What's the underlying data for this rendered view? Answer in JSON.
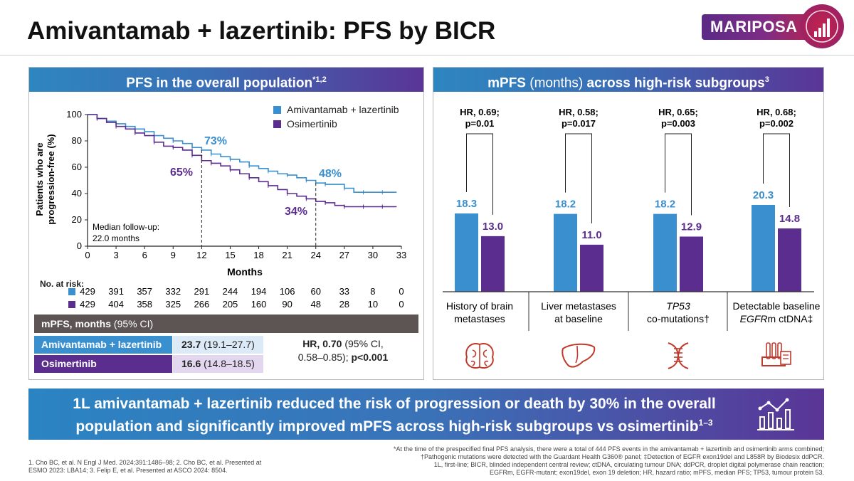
{
  "header": {
    "title": "Amivantamab + lazertinib: PFS by BICR",
    "logo_text": "MARIPOSA"
  },
  "left_panel": {
    "title": "PFS in the overall population",
    "title_sup": "*1,2",
    "ylabel_line1": "Patients who are",
    "ylabel_line2": "progression-free (%)",
    "xlabel": "Months",
    "annotation_73": "73%",
    "annotation_65": "65%",
    "annotation_48": "48%",
    "annotation_34": "34%",
    "followup_line1": "Median follow-up:",
    "followup_line2": "22.0 months",
    "legend": [
      "Amivantamab + lazertinib",
      "Osimertinib"
    ],
    "risk_title": "No. at risk:"
  },
  "mpfs_table": {
    "header_bold": "mPFS, months",
    "header_light": "(95% CI)",
    "rows": [
      {
        "label": "Amivantamab + lazertinib",
        "median": "23.7",
        "ci": "(19.1–27.7)"
      },
      {
        "label": "Osimertinib",
        "median": "16.6",
        "ci": "(14.8–18.5)"
      }
    ],
    "hr_bold": "HR, 0.70",
    "hr_rest": "(95% CI,",
    "hr_line2": "0.58–0.85);",
    "hr_p": "p<0.001"
  },
  "right_panel": {
    "title_bold1": "mPFS",
    "title_light": "(months)",
    "title_bold2": "across high-risk subgroups",
    "title_sup": "3",
    "icons": [
      "brain-icon",
      "liver-icon",
      "dna-icon",
      "test-tube-rack-icon"
    ]
  },
  "banner": {
    "line1": "1L amivantamab + lazertinib reduced the risk of progression or death by 30% in the overall",
    "line2": "population and significantly improved mPFS across high-risk subgroups vs osimertinib",
    "sup": "1–3"
  },
  "footnotes": {
    "left": "1. Cho BC, et al. N Engl J Med. 2024;391:1486–98; 2. Cho BC, et al. Presented at ESMO 2023: LBA14; 3. Felip E, et al. Presented at ASCO 2024: 8504.",
    "right_1": "*At the time of the prespecified final PFS analysis, there were a total of 444 PFS events in the amivantamab + lazertinib and osimertinib arms combined;",
    "right_2": "†Pathogenic mutations were detected with the Guardant Health G360® panel; ‡Detection of EGFR exon19del and L858R by Biodesix ddPCR.",
    "right_3": "1L, first-line; BICR, blinded independent central review; ctDNA, circulating tumour DNA; ddPCR, droplet digital polymerase chain reaction;",
    "right_4": "EGFRm, EGFR-mutant; exon19del, exon 19 deletion; HR, hazard ratio; mPFS, median PFS; TP53, tumour protein 53."
  },
  "colors": {
    "ami": "#3a8fcf",
    "osi": "#5b2d8e",
    "mpfs_head": "#5c5553",
    "ami_cell": "#dce9f6",
    "osi_cell": "#e3d7f0"
  },
  "chart_data": [
    {
      "type": "line",
      "name": "Kaplan-Meier PFS",
      "xlabel": "Months",
      "ylabel": "Patients who are progression-free (%)",
      "xlim": [
        0,
        33
      ],
      "ylim": [
        0,
        100
      ],
      "xticks": [
        0,
        3,
        6,
        9,
        12,
        15,
        18,
        21,
        24,
        27,
        30,
        33
      ],
      "yticks": [
        0,
        20,
        40,
        60,
        80,
        100
      ],
      "series": [
        {
          "name": "Amivantamab + lazertinib",
          "color": "#3a8fcf",
          "x": [
            0,
            1,
            2,
            3,
            4,
            5,
            6,
            7,
            8,
            9,
            10,
            11,
            12,
            13,
            14,
            15,
            16,
            17,
            18,
            19,
            20,
            21,
            22,
            23,
            24,
            25,
            26,
            27,
            28,
            29,
            30,
            31,
            32.5
          ],
          "y": [
            100,
            97,
            95,
            93,
            91,
            89,
            87,
            84,
            82,
            80,
            78,
            75,
            73,
            70,
            68,
            66,
            64,
            61,
            59,
            57,
            55,
            54,
            52,
            50,
            48,
            47,
            47,
            44,
            41,
            41,
            41,
            41,
            41
          ],
          "at_risk": [
            429,
            391,
            357,
            332,
            291,
            244,
            194,
            106,
            60,
            33,
            8,
            0
          ]
        },
        {
          "name": "Osimertinib",
          "color": "#5b2d8e",
          "x": [
            0,
            1,
            2,
            3,
            4,
            5,
            6,
            7,
            8,
            9,
            10,
            11,
            12,
            13,
            14,
            15,
            16,
            17,
            18,
            19,
            20,
            21,
            22,
            23,
            24,
            25,
            26,
            27,
            28,
            29,
            30,
            31,
            32.5
          ],
          "y": [
            100,
            97,
            94,
            91,
            89,
            86,
            84,
            79,
            76,
            75,
            73,
            69,
            65,
            63,
            61,
            58,
            55,
            52,
            49,
            46,
            43,
            40,
            38,
            36,
            34,
            33,
            31,
            30,
            30,
            30,
            30,
            30,
            30
          ],
          "at_risk": [
            429,
            404,
            358,
            325,
            266,
            205,
            160,
            90,
            48,
            28,
            10,
            0
          ]
        }
      ],
      "at_risk_times": [
        0,
        3,
        6,
        9,
        12,
        15,
        18,
        21,
        24,
        27,
        30,
        33
      ],
      "annotations": [
        {
          "x": 12,
          "label": "73%",
          "series": "Amivantamab + lazertinib"
        },
        {
          "x": 12,
          "label": "65%",
          "series": "Osimertinib"
        },
        {
          "x": 24,
          "label": "48%",
          "series": "Amivantamab + lazertinib"
        },
        {
          "x": 24,
          "label": "34%",
          "series": "Osimertinib"
        }
      ]
    },
    {
      "type": "bar",
      "name": "mPFS (months) across high-risk subgroups",
      "groups": [
        {
          "label_lines": [
            "History of brain",
            "metastases"
          ],
          "italic_word": "",
          "hr": "HR, 0.69;",
          "p": "p=0.01",
          "values": [
            18.3,
            13.0
          ],
          "value_labels": [
            "18.3",
            "13.0"
          ]
        },
        {
          "label_lines": [
            "Liver metastases",
            "at baseline"
          ],
          "italic_word": "",
          "hr": "HR, 0.58;",
          "p": "p=0.017",
          "values": [
            18.2,
            11.0
          ],
          "value_labels": [
            "18.2",
            "11.0"
          ]
        },
        {
          "label_lines": [
            "TP53",
            "co-mutations†"
          ],
          "italic_word": "TP53",
          "hr": "HR, 0.65;",
          "p": "p=0.003",
          "values": [
            18.2,
            12.9
          ],
          "value_labels": [
            "18.2",
            "12.9"
          ]
        },
        {
          "label_lines": [
            "Detectable baseline",
            "EGFRm ctDNA‡"
          ],
          "italic_word": "EGFR",
          "hr": "HR, 0.68;",
          "p": "p=0.002",
          "values": [
            20.3,
            14.8
          ],
          "value_labels": [
            "20.3",
            "14.8"
          ]
        }
      ],
      "series": [
        {
          "name": "Amivantamab + lazertinib",
          "color": "#3a8fcf"
        },
        {
          "name": "Osimertinib",
          "color": "#5b2d8e"
        }
      ],
      "ylim": [
        0,
        26
      ]
    }
  ]
}
